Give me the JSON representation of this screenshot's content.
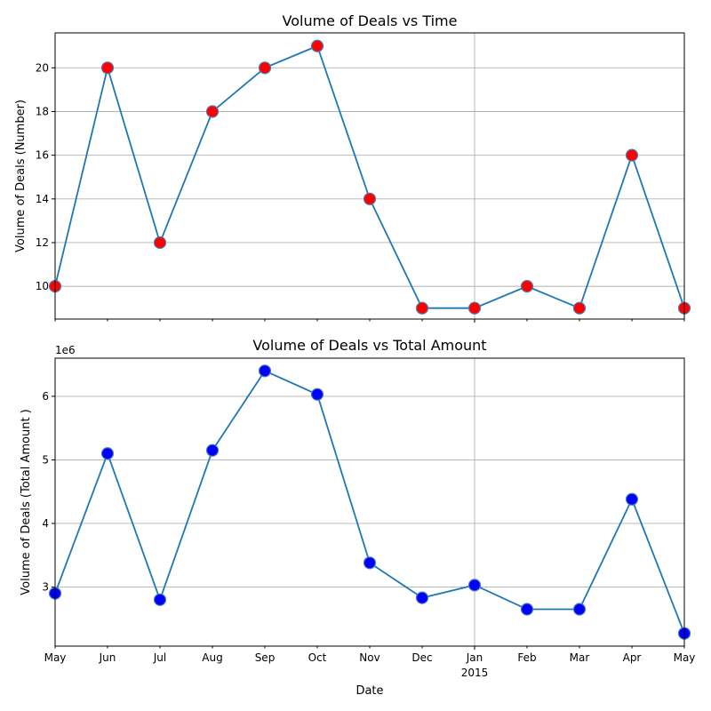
{
  "chart_data": [
    {
      "type": "line",
      "title": "Volume of Deals vs Time",
      "xlabel": "",
      "ylabel": "Volume of Deals (Number)",
      "x": [
        "2014-05",
        "2014-06",
        "2014-07",
        "2014-08",
        "2014-09",
        "2014-10",
        "2014-11",
        "2014-12",
        "2015-01",
        "2015-02",
        "2015-03",
        "2015-04",
        "2015-05"
      ],
      "values": [
        10,
        20,
        12,
        18,
        20,
        21,
        14,
        9,
        9,
        10,
        9,
        16,
        9
      ],
      "ylim": [
        8.5,
        21.6
      ],
      "yticks": [
        "10",
        "12",
        "14",
        "16",
        "18",
        "20"
      ],
      "grid": true,
      "show_xticklabels": false,
      "marker_color": "#ff0000",
      "line_color": "#1f77b4"
    },
    {
      "type": "line",
      "title": "Volume of Deals vs Total Amount",
      "xlabel": "Date",
      "ylabel": "Volume of Deals (Total Amount )",
      "offset_label": "1e6",
      "x": [
        "2014-05",
        "2014-06",
        "2014-07",
        "2014-08",
        "2014-09",
        "2014-10",
        "2014-11",
        "2014-12",
        "2015-01",
        "2015-02",
        "2015-03",
        "2015-04",
        "2015-05"
      ],
      "values": [
        2.9,
        5.1,
        2.8,
        5.15,
        6.4,
        6.03,
        3.38,
        2.83,
        3.03,
        2.65,
        2.65,
        4.38,
        2.27
      ],
      "ylim": [
        2.07,
        6.6
      ],
      "yticks": [
        "3",
        "4",
        "5",
        "6"
      ],
      "grid": true,
      "marker_color": "#0000ff",
      "line_color": "#1f77b4",
      "xticklabels": [
        "May",
        "Jun",
        "Jul",
        "Aug",
        "Sep",
        "Oct",
        "Nov",
        "Dec",
        "Jan",
        "Feb",
        "Mar",
        "Apr",
        "May"
      ],
      "year_label": "2015"
    }
  ]
}
